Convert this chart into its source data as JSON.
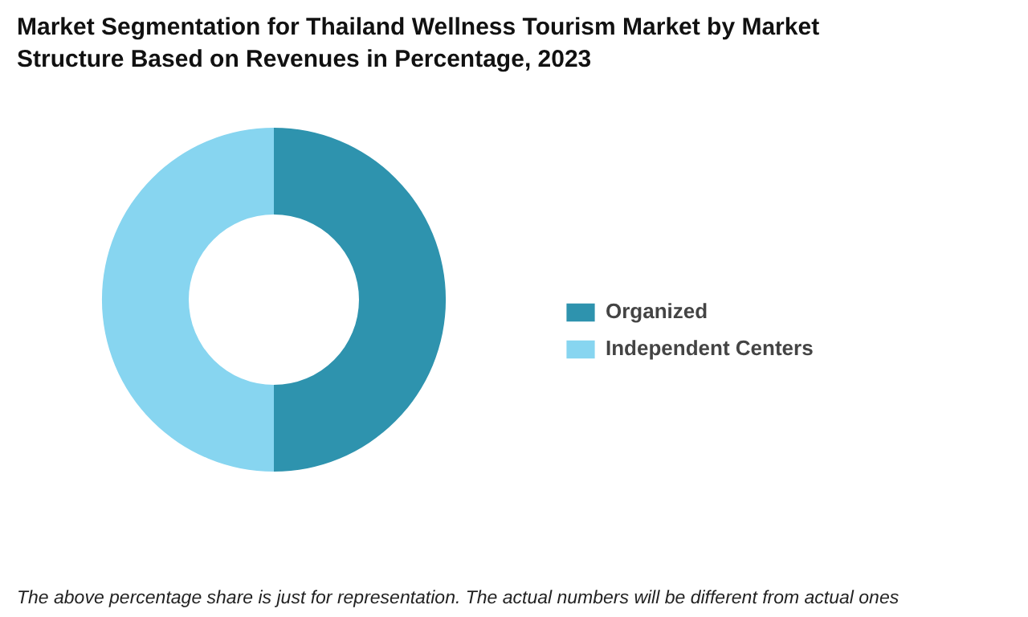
{
  "chart_data": {
    "type": "donut",
    "title": "Market Segmentation for Thailand Wellness Tourism Market by Market Structure Based on Revenues in Percentage, 2023",
    "categories": [
      "Organized",
      "Independent Centers"
    ],
    "values": [
      50,
      50
    ],
    "colors": [
      "#2e93ae",
      "#87d5f0"
    ],
    "legend": "right",
    "annotations": [
      "The above percentage share is just for representation. The actual numbers will be different from actual ones"
    ]
  }
}
